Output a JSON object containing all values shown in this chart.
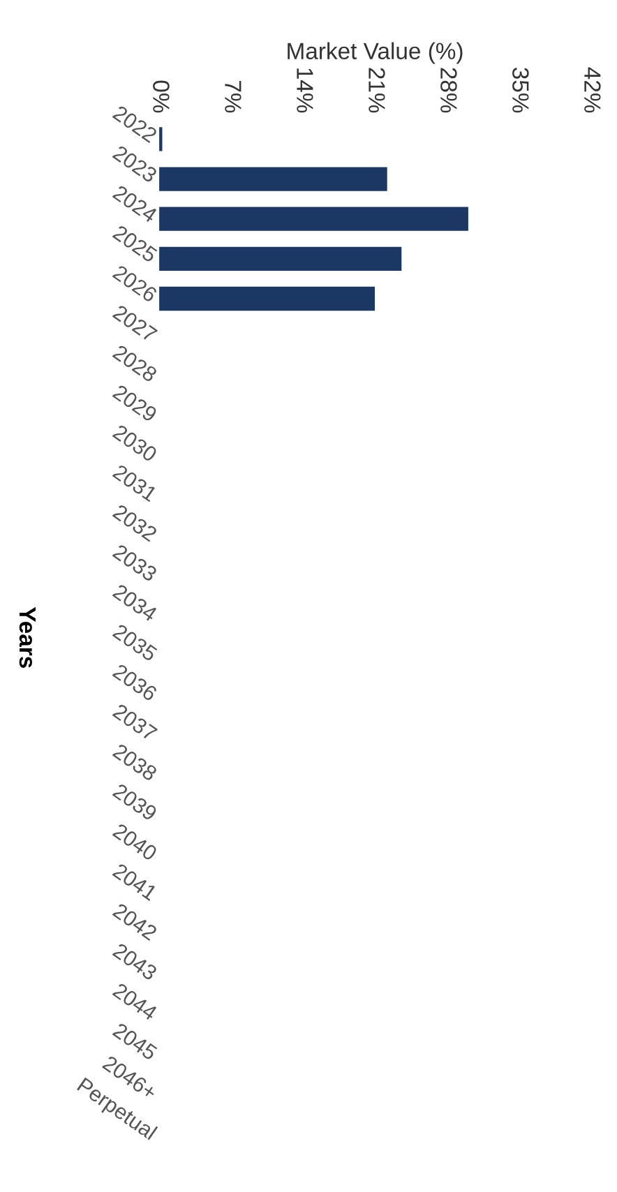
{
  "chart_data": {
    "type": "bar",
    "orientation": "horizontal",
    "xlabel": "Market Value (%)",
    "ylabel": "Years",
    "categories": [
      "2022",
      "2023",
      "2024",
      "2025",
      "2026",
      "2027",
      "2028",
      "2029",
      "2030",
      "2031",
      "2032",
      "2033",
      "2034",
      "2035",
      "2036",
      "2037",
      "2038",
      "2039",
      "2040",
      "2041",
      "2042",
      "2043",
      "2044",
      "2045",
      "2046+",
      "Perpetual"
    ],
    "values": [
      0.3,
      22.2,
      30.1,
      23.6,
      21.0,
      0,
      0,
      0,
      0,
      0,
      0,
      0,
      0,
      0,
      0,
      0,
      0,
      0,
      0,
      0,
      0,
      0,
      0,
      0,
      0,
      0
    ],
    "color": "#1b3764",
    "xlim": [
      0,
      42
    ],
    "xticks": [
      {
        "value": 0,
        "label": "0%"
      },
      {
        "value": 7,
        "label": "7%"
      },
      {
        "value": 14,
        "label": "14%"
      },
      {
        "value": 21,
        "label": "21%"
      },
      {
        "value": 28,
        "label": "28%"
      },
      {
        "value": 35,
        "label": "35%"
      },
      {
        "value": 42,
        "label": "42%"
      }
    ],
    "grid": false,
    "legend": false
  }
}
